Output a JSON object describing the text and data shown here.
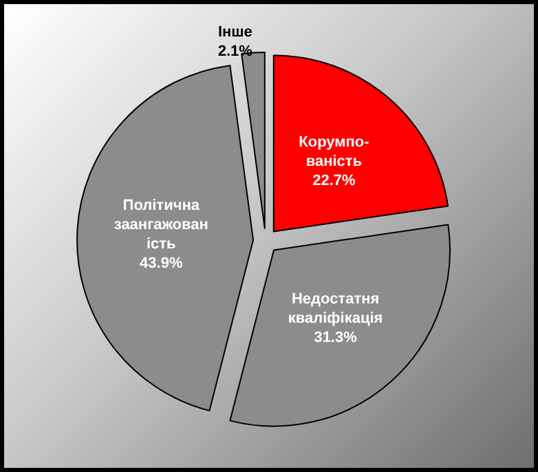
{
  "chart_data": {
    "type": "pie",
    "categories": [
      "Корумпо-\nваність",
      "Недостатня\nкваліфікація",
      "Політична\nзаангажован\nість",
      "Інше"
    ],
    "values": [
      22.7,
      31.3,
      43.9,
      2.1
    ],
    "value_labels": [
      "22.7%",
      "31.3%",
      "43.9%",
      "2.1%"
    ],
    "colors": [
      "#ff0000",
      "#8c8c8c",
      "#8c8c8c",
      "#8c8c8c"
    ],
    "legend": false
  }
}
